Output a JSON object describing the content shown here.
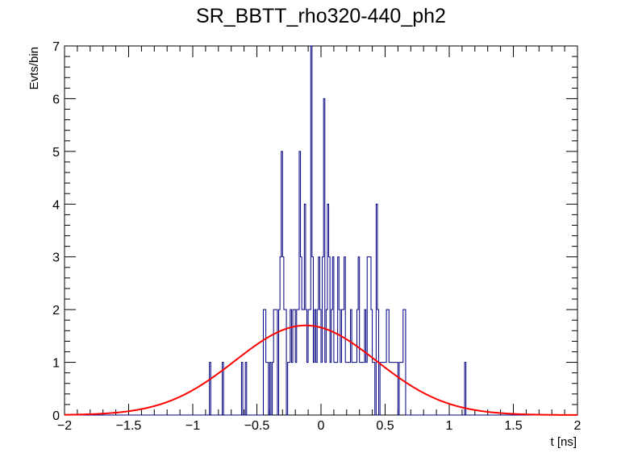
{
  "chart_data": {
    "type": "histogram",
    "title": "SR_BBTT_rho320-440_ph2",
    "xlabel": "t [ns]",
    "ylabel": "Evts/bin",
    "xlim": [
      -2,
      2
    ],
    "ylim": [
      0,
      7
    ],
    "x_ticks": [
      {
        "value": -2,
        "label": "−2"
      },
      {
        "value": -1.5,
        "label": "−1.5"
      },
      {
        "value": -1,
        "label": "−1"
      },
      {
        "value": -0.5,
        "label": "−0.5"
      },
      {
        "value": 0,
        "label": "0"
      },
      {
        "value": 0.5,
        "label": "0.5"
      },
      {
        "value": 1,
        "label": "1"
      },
      {
        "value": 1.5,
        "label": "1.5"
      },
      {
        "value": 2,
        "label": "2"
      }
    ],
    "y_ticks": [
      {
        "value": 0,
        "label": "0"
      },
      {
        "value": 1,
        "label": "1"
      },
      {
        "value": 2,
        "label": "2"
      },
      {
        "value": 3,
        "label": "3"
      },
      {
        "value": 4,
        "label": "4"
      },
      {
        "value": 5,
        "label": "5"
      },
      {
        "value": 6,
        "label": "6"
      },
      {
        "value": 7,
        "label": "7"
      }
    ],
    "bin_width": 0.01,
    "histogram": {
      "color": "#000080",
      "bin_low_edges": [
        -0.87,
        -0.77,
        -0.62,
        -0.59,
        -0.45,
        -0.44,
        -0.43,
        -0.42,
        -0.4,
        -0.38,
        -0.37,
        -0.36,
        -0.35,
        -0.33,
        -0.32,
        -0.31,
        -0.3,
        -0.29,
        -0.28,
        -0.26,
        -0.25,
        -0.24,
        -0.23,
        -0.22,
        -0.21,
        -0.2,
        -0.19,
        -0.18,
        -0.17,
        -0.16,
        -0.15,
        -0.14,
        -0.13,
        -0.12,
        -0.11,
        -0.1,
        -0.09,
        -0.08,
        -0.07,
        -0.06,
        -0.05,
        -0.04,
        -0.03,
        -0.02,
        -0.01,
        0.0,
        0.01,
        0.02,
        0.03,
        0.04,
        0.05,
        0.06,
        0.07,
        0.08,
        0.09,
        0.1,
        0.11,
        0.12,
        0.13,
        0.14,
        0.15,
        0.16,
        0.17,
        0.18,
        0.19,
        0.2,
        0.21,
        0.22,
        0.23,
        0.24,
        0.25,
        0.26,
        0.27,
        0.28,
        0.29,
        0.3,
        0.31,
        0.32,
        0.33,
        0.34,
        0.35,
        0.36,
        0.37,
        0.38,
        0.39,
        0.4,
        0.41,
        0.43,
        0.44,
        0.46,
        0.47,
        0.48,
        0.49,
        0.5,
        0.51,
        0.52,
        0.53,
        0.54,
        0.55,
        0.56,
        0.57,
        0.58,
        0.59,
        0.61,
        0.62,
        0.63,
        0.64,
        0.65,
        1.12
      ],
      "counts": [
        1,
        1,
        1,
        1,
        2,
        2,
        1,
        1,
        1,
        1,
        2,
        2,
        2,
        2,
        3,
        5,
        3,
        2,
        2,
        1,
        1,
        2,
        1,
        2,
        2,
        1,
        2,
        2,
        5,
        3,
        2,
        2,
        4,
        2,
        1,
        2,
        2,
        7,
        3,
        1,
        2,
        1,
        2,
        3,
        2,
        1,
        3,
        6,
        1,
        2,
        4,
        3,
        1,
        2,
        3,
        1,
        1,
        1,
        3,
        2,
        1,
        2,
        2,
        3,
        1,
        1,
        1,
        1,
        2,
        1,
        1,
        1,
        1,
        2,
        3,
        1,
        1,
        1,
        1,
        2,
        1,
        3,
        3,
        3,
        2,
        1,
        1,
        4,
        2,
        1,
        1,
        1,
        1,
        1,
        2,
        2,
        1,
        1,
        1,
        1,
        1,
        1,
        1,
        1,
        1,
        1,
        2,
        2,
        1
      ]
    },
    "fit": {
      "type": "gaussian",
      "color": "#ff0000",
      "amplitude": 1.7,
      "mean": -0.12,
      "sigma": 0.55
    }
  }
}
